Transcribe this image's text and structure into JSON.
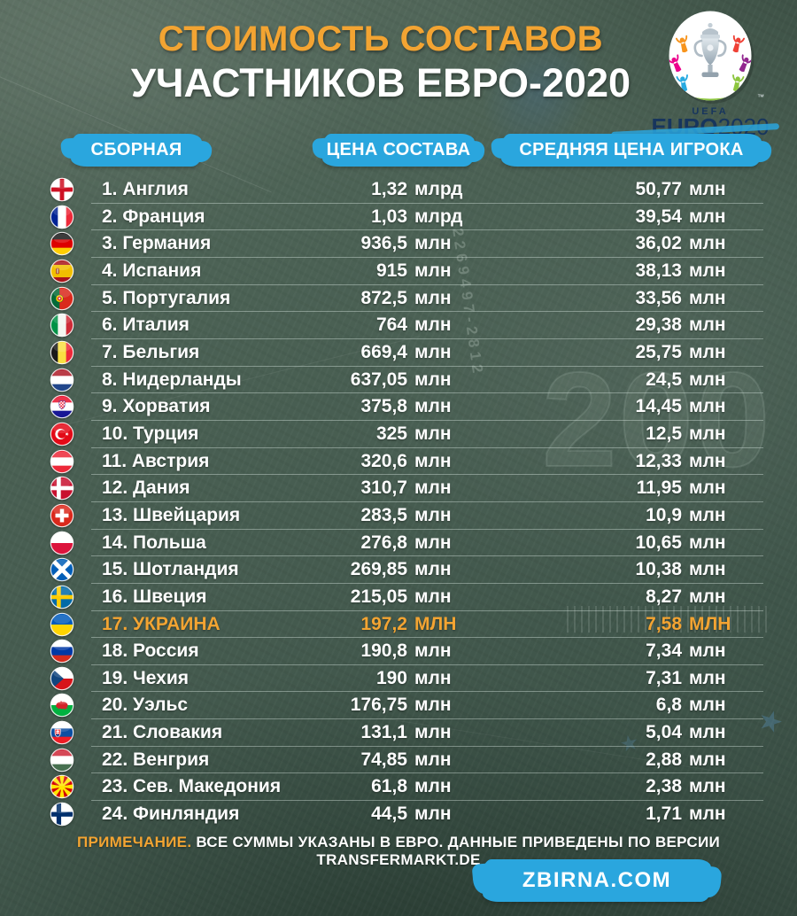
{
  "title": {
    "line1": "СТОИМОСТЬ СОСТАВОВ",
    "line2": "УЧАСТНИКОВ ЕВРО-2020"
  },
  "logo": {
    "uefa": "UEFA",
    "euro": "EURO",
    "year": "2020",
    "tm": "™"
  },
  "columns": {
    "team": "СБОРНАЯ",
    "squad_value": "ЦЕНА СОСТАВА",
    "avg_value": "СРЕДНЯЯ ЦЕНА ИГРОКА"
  },
  "chart_data": {
    "type": "table",
    "title": "СТОИМОСТЬ СОСТАВОВ УЧАСТНИКОВ ЕВРО-2020",
    "columns": [
      "СБОРНАЯ",
      "ЦЕНА СОСТАВА",
      "СРЕДНЯЯ ЦЕНА ИГРОКА"
    ],
    "rows": [
      {
        "rank": 1,
        "team": "Англия",
        "flag": "england",
        "squad": "1,32",
        "squad_unit": "млрд",
        "avg": "50,77",
        "avg_unit": "млн",
        "highlight": false
      },
      {
        "rank": 2,
        "team": "Франция",
        "flag": "france",
        "squad": "1,03",
        "squad_unit": "млрд",
        "avg": "39,54",
        "avg_unit": "млн",
        "highlight": false
      },
      {
        "rank": 3,
        "team": "Германия",
        "flag": "germany",
        "squad": "936,5",
        "squad_unit": "млн",
        "avg": "36,02",
        "avg_unit": "млн",
        "highlight": false
      },
      {
        "rank": 4,
        "team": "Испания",
        "flag": "spain",
        "squad": "915",
        "squad_unit": "млн",
        "avg": "38,13",
        "avg_unit": "млн",
        "highlight": false
      },
      {
        "rank": 5,
        "team": "Португалия",
        "flag": "portugal",
        "squad": "872,5",
        "squad_unit": "млн",
        "avg": "33,56",
        "avg_unit": "млн",
        "highlight": false
      },
      {
        "rank": 6,
        "team": "Италия",
        "flag": "italy",
        "squad": "764",
        "squad_unit": "млн",
        "avg": "29,38",
        "avg_unit": "млн",
        "highlight": false
      },
      {
        "rank": 7,
        "team": "Бельгия",
        "flag": "belgium",
        "squad": "669,4",
        "squad_unit": "млн",
        "avg": "25,75",
        "avg_unit": "млн",
        "highlight": false
      },
      {
        "rank": 8,
        "team": "Нидерланды",
        "flag": "netherlands",
        "squad": "637,05",
        "squad_unit": "млн",
        "avg": "24,5",
        "avg_unit": "млн",
        "highlight": false
      },
      {
        "rank": 9,
        "team": "Хорватия",
        "flag": "croatia",
        "squad": "375,8",
        "squad_unit": "млн",
        "avg": "14,45",
        "avg_unit": "млн",
        "highlight": false
      },
      {
        "rank": 10,
        "team": "Турция",
        "flag": "turkey",
        "squad": "325",
        "squad_unit": "млн",
        "avg": "12,5",
        "avg_unit": "млн",
        "highlight": false
      },
      {
        "rank": 11,
        "team": "Австрия",
        "flag": "austria",
        "squad": "320,6",
        "squad_unit": "млн",
        "avg": "12,33",
        "avg_unit": "млн",
        "highlight": false
      },
      {
        "rank": 12,
        "team": "Дания",
        "flag": "denmark",
        "squad": "310,7",
        "squad_unit": "млн",
        "avg": "11,95",
        "avg_unit": "млн",
        "highlight": false
      },
      {
        "rank": 13,
        "team": "Швейцария",
        "flag": "switzerland",
        "squad": "283,5",
        "squad_unit": "млн",
        "avg": "10,9",
        "avg_unit": "млн",
        "highlight": false
      },
      {
        "rank": 14,
        "team": "Польша",
        "flag": "poland",
        "squad": "276,8",
        "squad_unit": "млн",
        "avg": "10,65",
        "avg_unit": "млн",
        "highlight": false
      },
      {
        "rank": 15,
        "team": "Шотландия",
        "flag": "scotland",
        "squad": "269,85",
        "squad_unit": "млн",
        "avg": "10,38",
        "avg_unit": "млн",
        "highlight": false
      },
      {
        "rank": 16,
        "team": "Швеция",
        "flag": "sweden",
        "squad": "215,05",
        "squad_unit": "млн",
        "avg": "8,27",
        "avg_unit": "млн",
        "highlight": false
      },
      {
        "rank": 17,
        "team": "УКРАИНА",
        "flag": "ukraine",
        "squad": "197,2",
        "squad_unit": "МЛН",
        "avg": "7,58",
        "avg_unit": "МЛН",
        "highlight": true
      },
      {
        "rank": 18,
        "team": "Россия",
        "flag": "russia",
        "squad": "190,8",
        "squad_unit": "млн",
        "avg": "7,34",
        "avg_unit": "млн",
        "highlight": false
      },
      {
        "rank": 19,
        "team": "Чехия",
        "flag": "czechia",
        "squad": "190",
        "squad_unit": "млн",
        "avg": "7,31",
        "avg_unit": "млн",
        "highlight": false
      },
      {
        "rank": 20,
        "team": "Уэльс",
        "flag": "wales",
        "squad": "176,75",
        "squad_unit": "млн",
        "avg": "6,8",
        "avg_unit": "млн",
        "highlight": false
      },
      {
        "rank": 21,
        "team": "Словакия",
        "flag": "slovakia",
        "squad": "131,1",
        "squad_unit": "млн",
        "avg": "5,04",
        "avg_unit": "млн",
        "highlight": false
      },
      {
        "rank": 22,
        "team": "Венгрия",
        "flag": "hungary",
        "squad": "74,85",
        "squad_unit": "млн",
        "avg": "2,88",
        "avg_unit": "млн",
        "highlight": false
      },
      {
        "rank": 23,
        "team": "Сев. Македония",
        "flag": "north-macedonia",
        "squad": "61,8",
        "squad_unit": "млн",
        "avg": "2,38",
        "avg_unit": "млн",
        "highlight": false
      },
      {
        "rank": 24,
        "team": "Финляндия",
        "flag": "finland",
        "squad": "44,5",
        "squad_unit": "млн",
        "avg": "1,71",
        "avg_unit": "млн",
        "highlight": false
      }
    ]
  },
  "footer": {
    "note_label": "ПРИМЕЧАНИЕ.",
    "note_text": " ВСЕ СУММЫ УКАЗАНЫ В ЕВРО. ДАННЫЕ ПРИВЕДЕНЫ ПО ВЕРСИИ TRANSFERMARKT.DE",
    "site": "ZBIRNA.COM"
  },
  "background_decor": {
    "serial": "52269497-2812",
    "banknote_number": "200",
    "star": "★"
  },
  "colors": {
    "accent_orange": "#F3A432",
    "accent_blue": "#2AA6DE",
    "background_green": "#46584D",
    "text_white": "#FFFFFF"
  }
}
